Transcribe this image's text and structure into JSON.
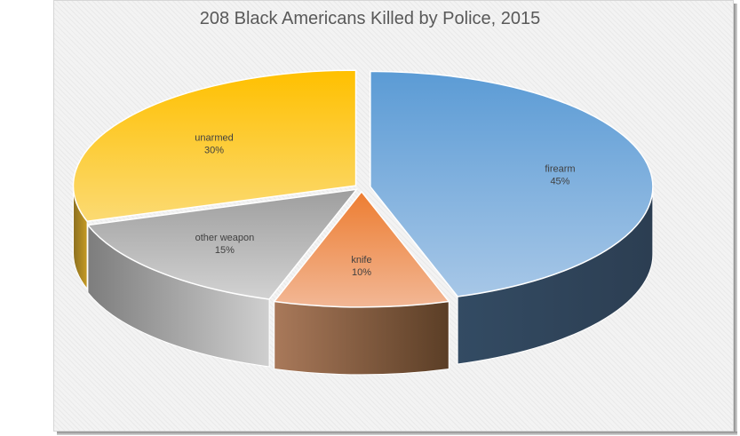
{
  "chart_data": {
    "type": "pie",
    "style": "3d-exploded",
    "title": "208 Black Americans Killed by Police, 2015",
    "slices": [
      {
        "label": "firearm",
        "value": 45,
        "value_label": "45%",
        "color": "#5b9bd5"
      },
      {
        "label": "knife",
        "value": 10,
        "value_label": "10%",
        "color": "#ed7d31"
      },
      {
        "label": "other weapon",
        "value": 15,
        "value_label": "15%",
        "color": "#a5a5a5"
      },
      {
        "label": "unarmed",
        "value": 30,
        "value_label": "30%",
        "color": "#ffc000"
      }
    ],
    "legend": "none"
  }
}
